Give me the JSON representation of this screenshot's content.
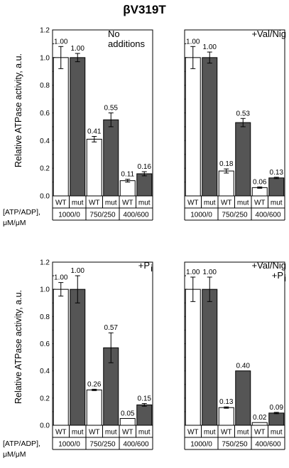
{
  "figure_title": "βV319T",
  "y_axis_label": "Relative ATPase activity, a.u.",
  "row_header": {
    "line1": "[ATP/ADP],",
    "line2": "μM/μM"
  },
  "colors": {
    "wt_fill": "#ffffff",
    "mut_fill": "#555555",
    "axis": "#000000"
  },
  "chart_data": [
    {
      "type": "bar",
      "label_lines": [
        "No",
        "additions"
      ],
      "label_sub": "",
      "categories": [
        "1000/0",
        "750/250",
        "400/600"
      ],
      "genotypes": [
        "WT",
        "mut"
      ],
      "series": [
        {
          "name": "WT",
          "values": [
            1.0,
            0.41,
            0.11
          ],
          "errors": [
            0.08,
            0.02,
            0.01
          ]
        },
        {
          "name": "mut",
          "values": [
            1.0,
            0.55,
            0.16
          ],
          "errors": [
            0.03,
            0.05,
            0.015
          ]
        }
      ],
      "data_labels": {
        "WT": [
          "1.00",
          "0.41",
          "0.11"
        ],
        "mut": [
          "1.00",
          "0.55",
          "0.16"
        ]
      },
      "ylim": [
        0,
        1.2
      ],
      "yticks": [
        "0.0",
        "0.2",
        "0.4",
        "0.6",
        "0.8",
        "1.0",
        "1.2"
      ]
    },
    {
      "type": "bar",
      "label_lines": [
        "+Val/Nig"
      ],
      "label_sub": "",
      "categories": [
        "1000/0",
        "750/250",
        "400/600"
      ],
      "genotypes": [
        "WT",
        "mut"
      ],
      "series": [
        {
          "name": "WT",
          "values": [
            1.0,
            0.18,
            0.06
          ],
          "errors": [
            0.08,
            0.015,
            0.005
          ]
        },
        {
          "name": "mut",
          "values": [
            1.0,
            0.53,
            0.13
          ],
          "errors": [
            0.04,
            0.03,
            0.005
          ]
        }
      ],
      "data_labels": {
        "WT": [
          "1.00",
          "0.18",
          "0.06"
        ],
        "mut": [
          "1.00",
          "0.53",
          "0.13"
        ]
      },
      "ylim": [
        0,
        1.2
      ],
      "yticks": [
        "0.0",
        "0.2",
        "0.4",
        "0.6",
        "0.8",
        "1.0",
        "1.2"
      ]
    },
    {
      "type": "bar",
      "label_lines": [
        "+P"
      ],
      "label_sub": "i",
      "categories": [
        "1000/0",
        "750/250",
        "400/600"
      ],
      "genotypes": [
        "WT",
        "mut"
      ],
      "series": [
        {
          "name": "WT",
          "values": [
            1.0,
            0.26,
            0.05
          ],
          "errors": [
            0.05,
            0.005,
            0.0
          ]
        },
        {
          "name": "mut",
          "values": [
            1.0,
            0.57,
            0.15
          ],
          "errors": [
            0.1,
            0.11,
            0.01
          ]
        }
      ],
      "data_labels": {
        "WT": [
          "1.00",
          "0.26",
          "0.05"
        ],
        "mut": [
          "1.00",
          "0.57",
          "0.15"
        ]
      },
      "ylim": [
        0,
        1.2
      ],
      "yticks": [
        "0.0",
        "0.2",
        "0.4",
        "0.6",
        "0.8",
        "1.0",
        "1.2"
      ]
    },
    {
      "type": "bar",
      "label_lines": [
        "+Val/Nig",
        "+P"
      ],
      "label_sub": "i",
      "categories": [
        "1000/0",
        "750/250",
        "400/600"
      ],
      "genotypes": [
        "WT",
        "mut"
      ],
      "series": [
        {
          "name": "WT",
          "values": [
            1.0,
            0.13,
            0.02
          ],
          "errors": [
            0.09,
            0.005,
            0.0
          ]
        },
        {
          "name": "mut",
          "values": [
            1.0,
            0.4,
            0.09
          ],
          "errors": [
            0.09,
            0.0,
            0.005
          ]
        }
      ],
      "data_labels": {
        "WT": [
          "1.00",
          "0.13",
          "0.02"
        ],
        "mut": [
          "1.00",
          "0.40",
          "0.09"
        ]
      },
      "ylim": [
        0,
        1.2
      ],
      "yticks": [
        "0.0",
        "0.2",
        "0.4",
        "0.6",
        "0.8",
        "1.0",
        "1.2"
      ]
    }
  ]
}
